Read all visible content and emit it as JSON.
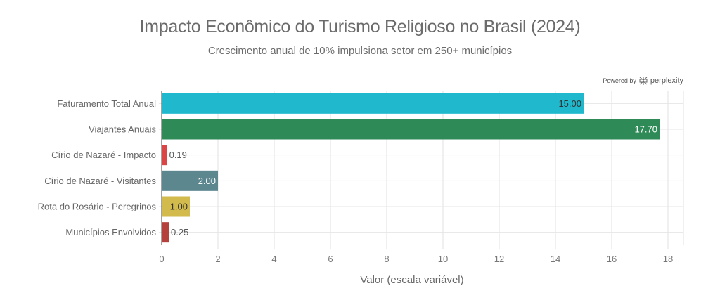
{
  "title": "Impacto Econômico do Turismo Religioso no Brasil (2024)",
  "subtitle": "Crescimento anual de 10% impulsiona setor em 250+ municípios",
  "watermark": {
    "prefix": "Powered by",
    "brand": "perplexity",
    "icon": "perplexity-logo-icon"
  },
  "chart_data": {
    "type": "bar",
    "orientation": "horizontal",
    "title": "Impacto Econômico do Turismo Religioso no Brasil (2024)",
    "subtitle": "Crescimento anual de 10% impulsiona setor em 250+ municípios",
    "categories": [
      "Faturamento Total Anual",
      "Viajantes Anuais",
      "Círio de Nazaré - Impacto",
      "Círio de Nazaré - Visitantes",
      "Rota do Rosário - Peregrinos",
      "Municípios Envolvidos"
    ],
    "values": [
      15.0,
      17.7,
      0.19,
      2.0,
      1.0,
      0.25
    ],
    "data_labels": [
      "15.00",
      "17.70",
      "0.19",
      "2.00",
      "1.00",
      "0.25"
    ],
    "colors": [
      "#1FB8CD",
      "#2E8B57",
      "#DB4545",
      "#5D878F",
      "#D2BA4C",
      "#B4413C"
    ],
    "xlabel": "Valor (escala variável)",
    "ylabel": "",
    "xlim": [
      0,
      18.55
    ],
    "xticks": [
      0,
      2,
      4,
      6,
      8,
      10,
      12,
      14,
      16,
      18
    ],
    "grid": true,
    "legend": "none"
  }
}
